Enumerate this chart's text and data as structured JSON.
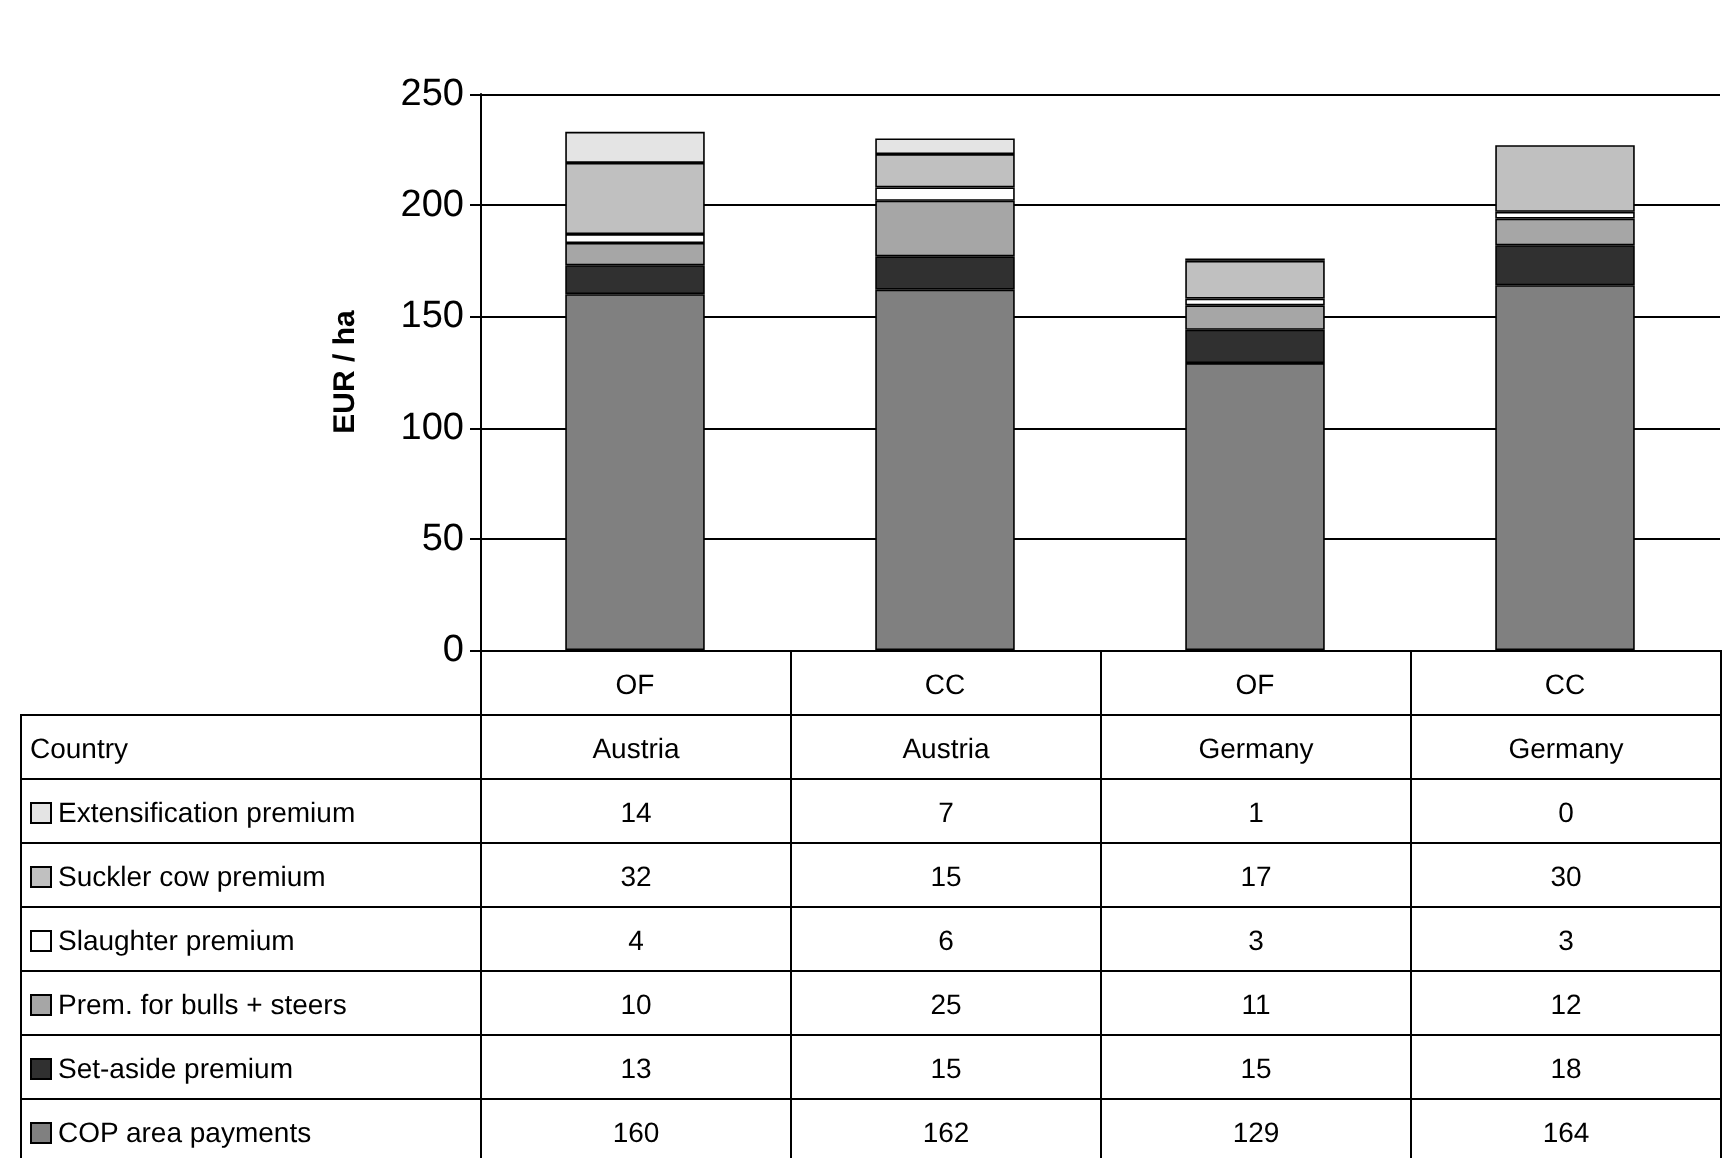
{
  "chart_data": {
    "type": "bar",
    "stacked": true,
    "ylabel": "EUR / ha",
    "categories": [
      "OF",
      "CC",
      "OF",
      "CC"
    ],
    "annotations": [
      "Country",
      "Austria",
      "Austria",
      "Germany",
      "Germany"
    ],
    "series": [
      {
        "name": "COP area payments",
        "color": "#808080",
        "values": [
          160,
          162,
          129,
          164
        ]
      },
      {
        "name": "Set-aside premium",
        "color": "#303030",
        "values": [
          13,
          15,
          15,
          18
        ]
      },
      {
        "name": "Prem. for bulls + steers",
        "color": "#a6a6a6",
        "values": [
          10,
          25,
          11,
          12
        ]
      },
      {
        "name": "Slaughter premium",
        "color": "#ffffff",
        "values": [
          4,
          6,
          3,
          3
        ]
      },
      {
        "name": "Suckler cow premium",
        "color": "#c0c0c0",
        "values": [
          32,
          15,
          17,
          30
        ]
      },
      {
        "name": "Extensification premium",
        "color": "#e4e4e4",
        "values": [
          14,
          7,
          1,
          0
        ]
      }
    ],
    "ylim": [
      0,
      250
    ],
    "yticks": [
      0,
      50,
      100,
      150,
      200,
      250
    ],
    "grid": "y",
    "data_labels": true,
    "legend": "bottom left"
  }
}
